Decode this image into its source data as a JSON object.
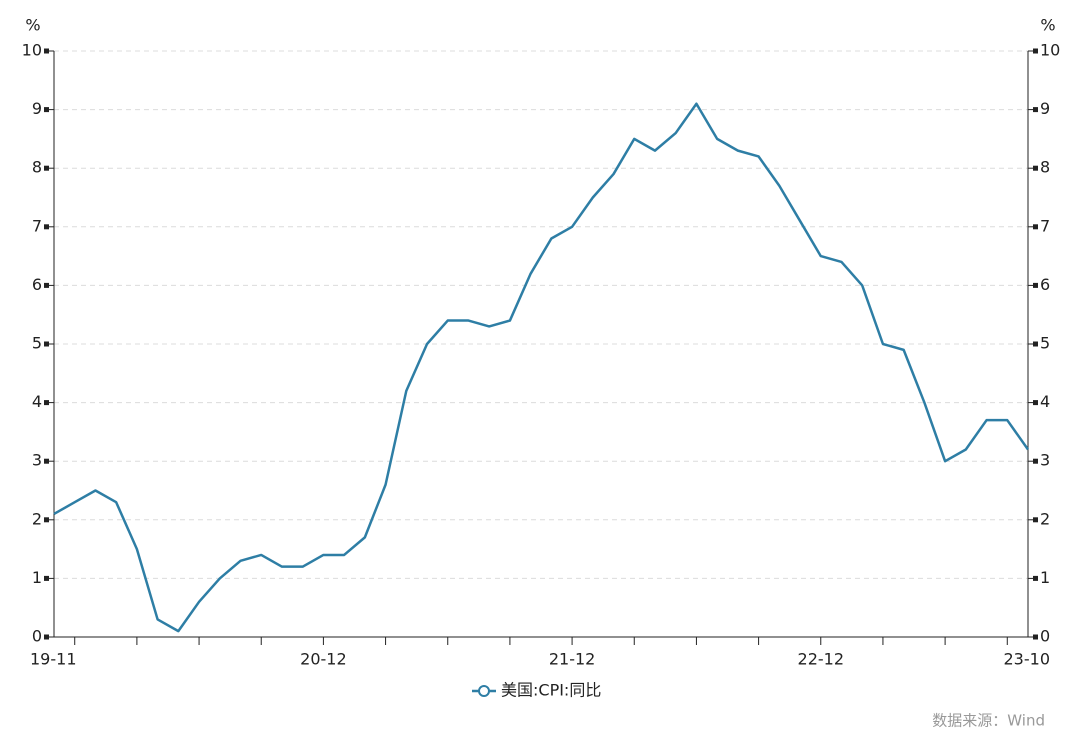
{
  "chart_data": {
    "type": "line",
    "y_unit": "%",
    "y2_unit": "%",
    "categories": [
      "19-11",
      null,
      null,
      null,
      null,
      null,
      null,
      null,
      null,
      null,
      null,
      null,
      null,
      "20-12",
      null,
      null,
      null,
      null,
      null,
      null,
      null,
      null,
      null,
      null,
      null,
      "21-12",
      null,
      null,
      null,
      null,
      null,
      null,
      null,
      null,
      null,
      null,
      null,
      "22-12",
      null,
      null,
      null,
      null,
      null,
      null,
      null,
      null,
      null,
      "23-10"
    ],
    "series": [
      {
        "name": "美国:CPI:同比",
        "color": "#2e7ea5",
        "values": [
          2.1,
          2.3,
          2.5,
          2.3,
          1.5,
          0.3,
          0.1,
          0.6,
          1.0,
          1.3,
          1.4,
          1.2,
          1.2,
          1.4,
          1.4,
          1.7,
          2.6,
          4.2,
          5.0,
          5.4,
          5.4,
          5.3,
          5.4,
          6.2,
          6.8,
          7.0,
          7.5,
          7.9,
          8.5,
          8.3,
          8.6,
          9.1,
          8.5,
          8.3,
          8.2,
          7.7,
          7.1,
          6.5,
          6.4,
          6.0,
          5.0,
          4.9,
          4.0,
          3.0,
          3.2,
          3.7,
          3.7,
          3.2
        ]
      }
    ],
    "ylim": [
      0,
      10
    ],
    "yticks": [
      0,
      1,
      2,
      3,
      4,
      5,
      6,
      7,
      8,
      9,
      10
    ],
    "y2lim": [
      0,
      10
    ],
    "y2ticks": [
      0,
      1,
      2,
      3,
      4,
      5,
      6,
      7,
      8,
      9,
      10
    ],
    "grid": true,
    "legend": "bottom",
    "source": "数据来源：Wind"
  }
}
